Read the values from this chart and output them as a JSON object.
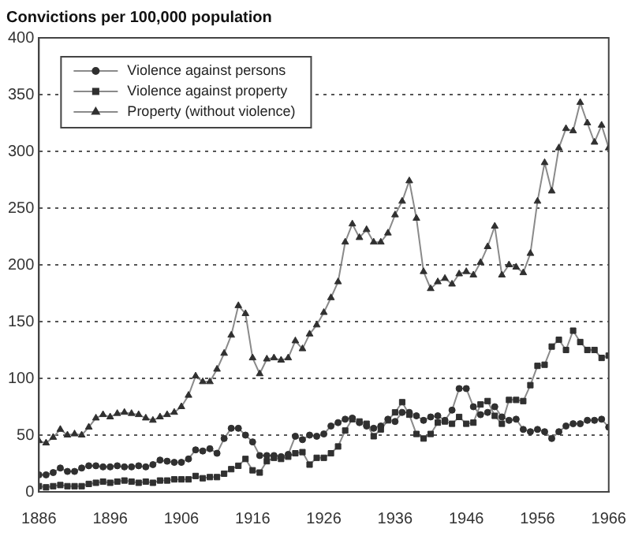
{
  "chart_data": {
    "type": "line",
    "ylabel": "Convictions per 100,000 population",
    "x": [
      1886,
      1887,
      1888,
      1889,
      1890,
      1891,
      1892,
      1893,
      1894,
      1895,
      1896,
      1897,
      1898,
      1899,
      1900,
      1901,
      1902,
      1903,
      1904,
      1905,
      1906,
      1907,
      1908,
      1909,
      1910,
      1911,
      1912,
      1913,
      1914,
      1915,
      1916,
      1917,
      1918,
      1919,
      1920,
      1921,
      1922,
      1923,
      1924,
      1925,
      1926,
      1927,
      1928,
      1929,
      1930,
      1931,
      1932,
      1933,
      1934,
      1935,
      1936,
      1937,
      1938,
      1939,
      1940,
      1941,
      1942,
      1943,
      1944,
      1945,
      1946,
      1947,
      1948,
      1949,
      1950,
      1951,
      1952,
      1953,
      1954,
      1955,
      1956,
      1957,
      1958,
      1959,
      1960,
      1961,
      1962,
      1963,
      1964,
      1965,
      1966
    ],
    "series": [
      {
        "name": "Violence against persons",
        "color": "#303030",
        "marker": "circle",
        "values": [
          15,
          15,
          17,
          21,
          18,
          18,
          21,
          23,
          23,
          22,
          22,
          23,
          22,
          22,
          23,
          22,
          24,
          28,
          27,
          26,
          26,
          29,
          37,
          36,
          38,
          34,
          47,
          56,
          56,
          50,
          44,
          32,
          32,
          32,
          31,
          33,
          49,
          46,
          50,
          49,
          51,
          58,
          61,
          64,
          65,
          61,
          58,
          56,
          58,
          64,
          62,
          70,
          70,
          67,
          63,
          66,
          67,
          63,
          72,
          91,
          91,
          75,
          68,
          70,
          75,
          66,
          63,
          64,
          55,
          53,
          55,
          53,
          47,
          53,
          58,
          60,
          60,
          63,
          63,
          64,
          57
        ]
      },
      {
        "name": "Violence against property",
        "color": "#303030",
        "marker": "square",
        "values": [
          5,
          4,
          5,
          6,
          5,
          5,
          5,
          7,
          8,
          9,
          8,
          9,
          10,
          9,
          8,
          9,
          8,
          10,
          10,
          11,
          11,
          11,
          14,
          12,
          13,
          13,
          16,
          20,
          23,
          29,
          19,
          17,
          27,
          30,
          29,
          31,
          34,
          35,
          24,
          30,
          30,
          34,
          40,
          54,
          64,
          62,
          60,
          49,
          55,
          63,
          70,
          79,
          68,
          51,
          47,
          51,
          61,
          62,
          60,
          66,
          60,
          61,
          77,
          80,
          67,
          60,
          81,
          81,
          80,
          94,
          111,
          112,
          128,
          134,
          125,
          142,
          132,
          125,
          125,
          118,
          120
        ]
      },
      {
        "name": "Property (without violence)",
        "color": "#303030",
        "marker": "triangle",
        "values": [
          45,
          43,
          48,
          55,
          50,
          51,
          50,
          57,
          65,
          68,
          66,
          69,
          70,
          69,
          68,
          65,
          63,
          66,
          68,
          70,
          75,
          85,
          102,
          97,
          97,
          108,
          122,
          138,
          164,
          157,
          118,
          104,
          117,
          118,
          116,
          118,
          133,
          126,
          139,
          147,
          158,
          171,
          185,
          220,
          236,
          224,
          231,
          220,
          220,
          228,
          244,
          256,
          274,
          241,
          194,
          179,
          185,
          188,
          183,
          192,
          194,
          191,
          202,
          216,
          234,
          191,
          200,
          198,
          193,
          210,
          256,
          290,
          265,
          303,
          320,
          318,
          343,
          325,
          308,
          323,
          303
        ]
      }
    ],
    "xlim": [
      1886,
      1966
    ],
    "xticks": [
      1886,
      1896,
      1906,
      1916,
      1926,
      1936,
      1946,
      1956,
      1966
    ],
    "ylim": [
      0,
      400
    ],
    "yticks": [
      0,
      50,
      100,
      150,
      200,
      250,
      300,
      350,
      400
    ],
    "grid": "y",
    "legend": "top left",
    "line_style": "solid"
  }
}
